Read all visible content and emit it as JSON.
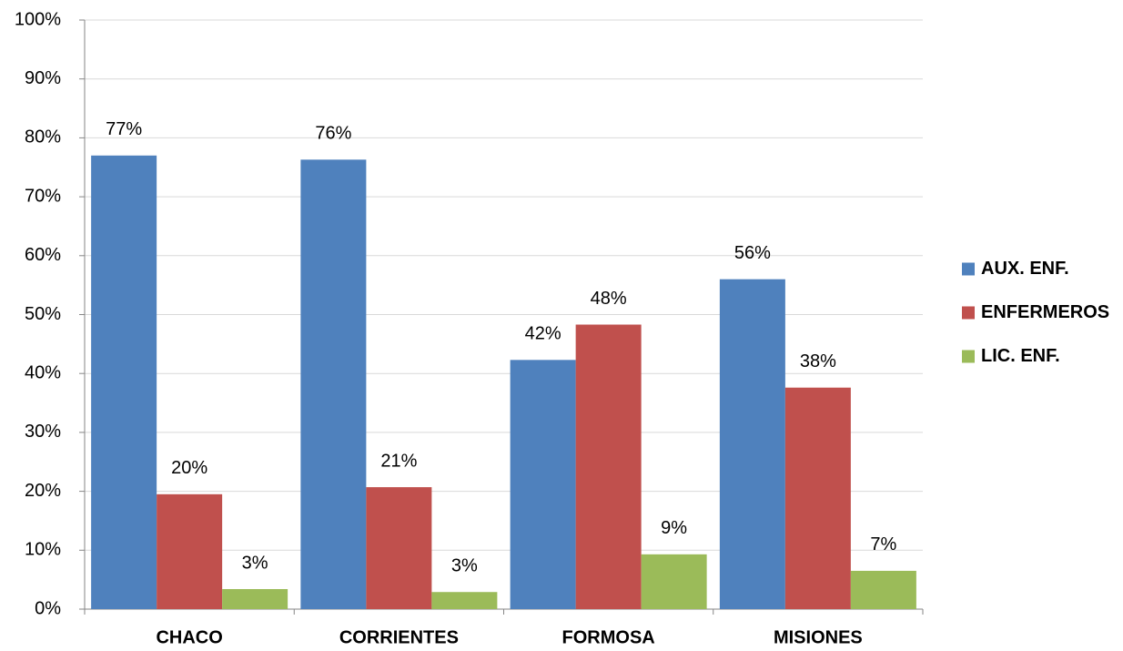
{
  "chart_data": {
    "type": "bar",
    "categories": [
      "CHACO",
      "CORRIENTES",
      "FORMOSA",
      "MISIONES"
    ],
    "series": [
      {
        "name": "AUX. ENF.",
        "color": "#4f81bd",
        "values": [
          77.0,
          76.3,
          42.3,
          56.0
        ],
        "value_labels": [
          "77%",
          "76%",
          "42%",
          "56%"
        ]
      },
      {
        "name": "ENFERMEROS",
        "color": "#c0504d",
        "values": [
          19.5,
          20.7,
          48.3,
          37.6
        ],
        "value_labels": [
          "20%",
          "21%",
          "48%",
          "38%"
        ]
      },
      {
        "name": "LIC. ENF.",
        "color": "#9bbb59",
        "values": [
          3.4,
          2.9,
          9.3,
          6.5
        ],
        "value_labels": [
          "3%",
          "3%",
          "9%",
          "7%"
        ]
      }
    ],
    "ylim": [
      0,
      100
    ],
    "yticks": [
      {
        "value": 0,
        "label": "0%"
      },
      {
        "value": 10,
        "label": "10%"
      },
      {
        "value": 20,
        "label": "20%"
      },
      {
        "value": 30,
        "label": "30%"
      },
      {
        "value": 40,
        "label": "40%"
      },
      {
        "value": 50,
        "label": "50%"
      },
      {
        "value": 60,
        "label": "60%"
      },
      {
        "value": 70,
        "label": "70%"
      },
      {
        "value": 80,
        "label": "80%"
      },
      {
        "value": 90,
        "label": "90%"
      },
      {
        "value": 100,
        "label": "100%"
      }
    ],
    "grid": true,
    "legend": "right"
  }
}
